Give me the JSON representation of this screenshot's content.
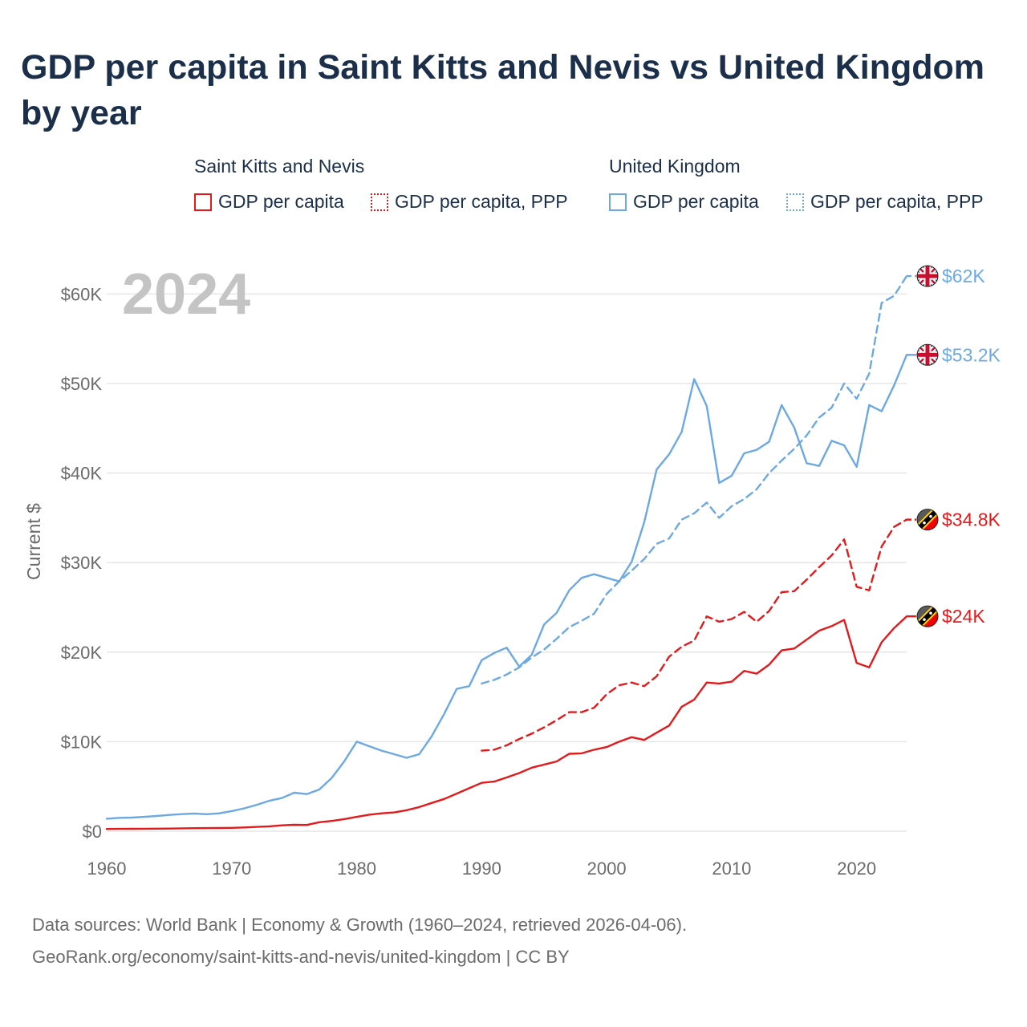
{
  "title": "GDP per capita in Saint Kitts and Nevis vs United Kingdom by year",
  "legend": {
    "groups": [
      {
        "name": "Saint Kitts and Nevis",
        "color": "#e31a1c",
        "items": [
          {
            "label": "GDP per capita",
            "style": "solid"
          },
          {
            "label": "GDP per capita, PPP",
            "style": "dotted"
          }
        ]
      },
      {
        "name": "United Kingdom",
        "color": "#6ca9e3",
        "items": [
          {
            "label": "GDP per capita",
            "style": "solid"
          },
          {
            "label": "GDP per capita, PPP",
            "style": "dotted"
          }
        ]
      }
    ]
  },
  "current_year_label": "2024",
  "footer": {
    "line1": "Data sources: World Bank | Economy & Growth (1960–2024, retrieved 2026-04-06).",
    "line2": "GeoRank.org/economy/saint-kitts-and-nevis/united-kingdom | CC BY"
  },
  "chart_data": {
    "type": "line",
    "title": "GDP per capita in Saint Kitts and Nevis vs United Kingdom by year",
    "xlabel": "",
    "ylabel": "Current $",
    "xlim": [
      1960,
      2024
    ],
    "ylim": [
      0,
      65000
    ],
    "x_ticks": [
      {
        "value": 1960,
        "label": "1960"
      },
      {
        "value": 1970,
        "label": "1970"
      },
      {
        "value": 1980,
        "label": "1980"
      },
      {
        "value": 1990,
        "label": "1990"
      },
      {
        "value": 2000,
        "label": "2000"
      },
      {
        "value": 2010,
        "label": "2010"
      },
      {
        "value": 2020,
        "label": "2020"
      }
    ],
    "y_ticks": [
      {
        "value": 0,
        "label": "$0"
      },
      {
        "value": 10000,
        "label": "$10K"
      },
      {
        "value": 20000,
        "label": "$20K"
      },
      {
        "value": 30000,
        "label": "$30K"
      },
      {
        "value": 40000,
        "label": "$40K"
      },
      {
        "value": 50000,
        "label": "$50K"
      },
      {
        "value": 60000,
        "label": "$60K"
      }
    ],
    "grid": true,
    "series": [
      {
        "name": "United Kingdom GDP per capita",
        "key": "uk-gdp",
        "country": "uk",
        "color": "#6ca9e3",
        "dash": "solid",
        "end_label": "$53.2K",
        "points": [
          [
            1960,
            1400
          ],
          [
            1961,
            1500
          ],
          [
            1962,
            1520
          ],
          [
            1963,
            1600
          ],
          [
            1964,
            1700
          ],
          [
            1965,
            1820
          ],
          [
            1966,
            1910
          ],
          [
            1967,
            1980
          ],
          [
            1968,
            1900
          ],
          [
            1969,
            2000
          ],
          [
            1970,
            2250
          ],
          [
            1971,
            2550
          ],
          [
            1972,
            2950
          ],
          [
            1973,
            3400
          ],
          [
            1974,
            3700
          ],
          [
            1975,
            4300
          ],
          [
            1976,
            4150
          ],
          [
            1977,
            4650
          ],
          [
            1978,
            5950
          ],
          [
            1979,
            7800
          ],
          [
            1980,
            10000
          ],
          [
            1981,
            9500
          ],
          [
            1982,
            9000
          ],
          [
            1983,
            8600
          ],
          [
            1984,
            8200
          ],
          [
            1985,
            8600
          ],
          [
            1986,
            10600
          ],
          [
            1987,
            13100
          ],
          [
            1988,
            15900
          ],
          [
            1989,
            16200
          ],
          [
            1990,
            19100
          ],
          [
            1991,
            19900
          ],
          [
            1992,
            20500
          ],
          [
            1993,
            18400
          ],
          [
            1994,
            19700
          ],
          [
            1995,
            23100
          ],
          [
            1996,
            24400
          ],
          [
            1997,
            26900
          ],
          [
            1998,
            28300
          ],
          [
            1999,
            28700
          ],
          [
            2000,
            28300
          ],
          [
            2001,
            27900
          ],
          [
            2002,
            30100
          ],
          [
            2003,
            34500
          ],
          [
            2004,
            40400
          ],
          [
            2005,
            42100
          ],
          [
            2006,
            44600
          ],
          [
            2007,
            50500
          ],
          [
            2008,
            47500
          ],
          [
            2009,
            38900
          ],
          [
            2010,
            39700
          ],
          [
            2011,
            42200
          ],
          [
            2012,
            42600
          ],
          [
            2013,
            43500
          ],
          [
            2014,
            47600
          ],
          [
            2015,
            45100
          ],
          [
            2016,
            41100
          ],
          [
            2017,
            40800
          ],
          [
            2018,
            43600
          ],
          [
            2019,
            43100
          ],
          [
            2020,
            40700
          ],
          [
            2021,
            47600
          ],
          [
            2022,
            46900
          ],
          [
            2023,
            49800
          ],
          [
            2024,
            53200
          ]
        ]
      },
      {
        "name": "United Kingdom GDP per capita, PPP",
        "key": "uk-ppp",
        "country": "uk",
        "color": "#6ca9e3",
        "dash": "dashed",
        "end_label": "$62K",
        "points": [
          [
            1990,
            16500
          ],
          [
            1991,
            16900
          ],
          [
            1992,
            17500
          ],
          [
            1993,
            18300
          ],
          [
            1994,
            19400
          ],
          [
            1995,
            20300
          ],
          [
            1996,
            21500
          ],
          [
            1997,
            22800
          ],
          [
            1998,
            23500
          ],
          [
            1999,
            24300
          ],
          [
            2000,
            26500
          ],
          [
            2001,
            27900
          ],
          [
            2002,
            29100
          ],
          [
            2003,
            30400
          ],
          [
            2004,
            32100
          ],
          [
            2005,
            32700
          ],
          [
            2006,
            34800
          ],
          [
            2007,
            35500
          ],
          [
            2008,
            36700
          ],
          [
            2009,
            35000
          ],
          [
            2010,
            36300
          ],
          [
            2011,
            37100
          ],
          [
            2012,
            38200
          ],
          [
            2013,
            40000
          ],
          [
            2014,
            41400
          ],
          [
            2015,
            42700
          ],
          [
            2016,
            44200
          ],
          [
            2017,
            46200
          ],
          [
            2018,
            47300
          ],
          [
            2019,
            50000
          ],
          [
            2020,
            48300
          ],
          [
            2021,
            51100
          ],
          [
            2022,
            59000
          ],
          [
            2023,
            59800
          ],
          [
            2024,
            62000
          ]
        ]
      },
      {
        "name": "Saint Kitts and Nevis GDP per capita, PPP",
        "key": "kn-ppp",
        "country": "kn",
        "color": "#e31a1c",
        "dash": "dashed",
        "end_label": "$34.8K",
        "points": [
          [
            1990,
            9000
          ],
          [
            1991,
            9100
          ],
          [
            1992,
            9600
          ],
          [
            1993,
            10300
          ],
          [
            1994,
            10900
          ],
          [
            1995,
            11600
          ],
          [
            1996,
            12400
          ],
          [
            1997,
            13300
          ],
          [
            1998,
            13300
          ],
          [
            1999,
            13800
          ],
          [
            2000,
            15300
          ],
          [
            2001,
            16300
          ],
          [
            2002,
            16600
          ],
          [
            2003,
            16200
          ],
          [
            2004,
            17300
          ],
          [
            2005,
            19500
          ],
          [
            2006,
            20600
          ],
          [
            2007,
            21300
          ],
          [
            2008,
            24000
          ],
          [
            2009,
            23400
          ],
          [
            2010,
            23700
          ],
          [
            2011,
            24500
          ],
          [
            2012,
            23400
          ],
          [
            2013,
            24600
          ],
          [
            2014,
            26700
          ],
          [
            2015,
            26800
          ],
          [
            2016,
            28100
          ],
          [
            2017,
            29500
          ],
          [
            2018,
            30800
          ],
          [
            2019,
            32600
          ],
          [
            2020,
            27300
          ],
          [
            2021,
            26900
          ],
          [
            2022,
            31800
          ],
          [
            2023,
            34000
          ],
          [
            2024,
            34800
          ]
        ]
      },
      {
        "name": "Saint Kitts and Nevis GDP per capita",
        "key": "kn-gdp",
        "country": "kn",
        "color": "#e31a1c",
        "dash": "solid",
        "end_label": "$24K",
        "points": [
          [
            1960,
            250
          ],
          [
            1961,
            260
          ],
          [
            1962,
            270
          ],
          [
            1963,
            280
          ],
          [
            1964,
            290
          ],
          [
            1965,
            300
          ],
          [
            1966,
            320
          ],
          [
            1967,
            340
          ],
          [
            1968,
            350
          ],
          [
            1969,
            360
          ],
          [
            1970,
            380
          ],
          [
            1971,
            420
          ],
          [
            1972,
            480
          ],
          [
            1973,
            550
          ],
          [
            1974,
            650
          ],
          [
            1975,
            720
          ],
          [
            1976,
            700
          ],
          [
            1977,
            1000
          ],
          [
            1978,
            1150
          ],
          [
            1979,
            1350
          ],
          [
            1980,
            1600
          ],
          [
            1981,
            1850
          ],
          [
            1982,
            2000
          ],
          [
            1983,
            2100
          ],
          [
            1984,
            2350
          ],
          [
            1985,
            2700
          ],
          [
            1986,
            3150
          ],
          [
            1987,
            3600
          ],
          [
            1988,
            4200
          ],
          [
            1989,
            4800
          ],
          [
            1990,
            5400
          ],
          [
            1991,
            5550
          ],
          [
            1992,
            6000
          ],
          [
            1993,
            6500
          ],
          [
            1994,
            7100
          ],
          [
            1995,
            7450
          ],
          [
            1996,
            7800
          ],
          [
            1997,
            8650
          ],
          [
            1998,
            8700
          ],
          [
            1999,
            9100
          ],
          [
            2000,
            9400
          ],
          [
            2001,
            10000
          ],
          [
            2002,
            10500
          ],
          [
            2003,
            10200
          ],
          [
            2004,
            11000
          ],
          [
            2005,
            11800
          ],
          [
            2006,
            13900
          ],
          [
            2007,
            14700
          ],
          [
            2008,
            16600
          ],
          [
            2009,
            16500
          ],
          [
            2010,
            16700
          ],
          [
            2011,
            17900
          ],
          [
            2012,
            17600
          ],
          [
            2013,
            18600
          ],
          [
            2014,
            20200
          ],
          [
            2015,
            20400
          ],
          [
            2016,
            21400
          ],
          [
            2017,
            22400
          ],
          [
            2018,
            22900
          ],
          [
            2019,
            23600
          ],
          [
            2020,
            18800
          ],
          [
            2021,
            18300
          ],
          [
            2022,
            21100
          ],
          [
            2023,
            22700
          ],
          [
            2024,
            24000
          ]
        ]
      }
    ]
  }
}
